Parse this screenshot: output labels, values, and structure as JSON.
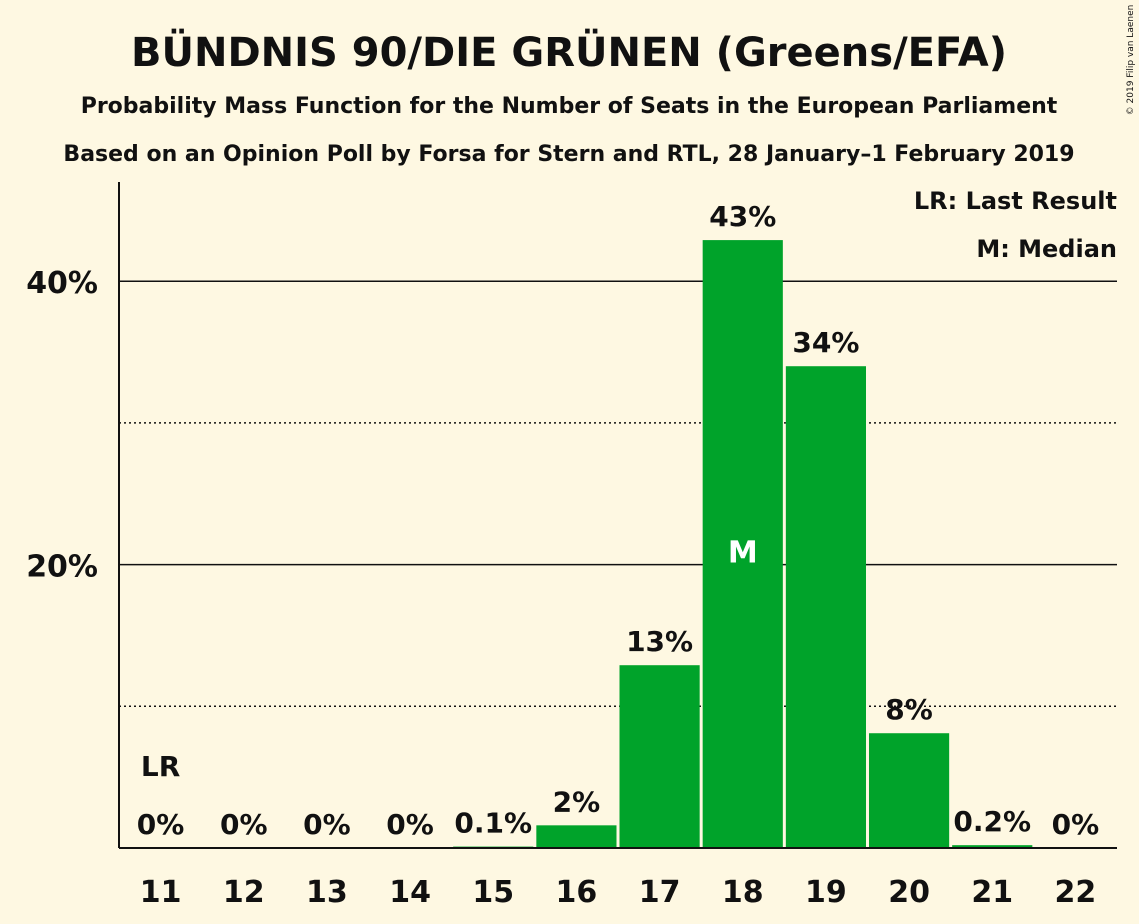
{
  "title": "BÜNDNIS 90/DIE GRÜNEN (Greens/EFA)",
  "subtitle1": "Probability Mass Function for the Number of Seats in the European Parliament",
  "subtitle2": "Based on an Opinion Poll by Forsa for Stern and RTL, 28 January–1 February 2019",
  "copyright": "© 2019 Filip van Laenen",
  "legend": {
    "lr": "LR: Last Result",
    "median": "M: Median"
  },
  "colors": {
    "bar": "#00a32a",
    "background": "#fef8e2",
    "text": "#111111"
  },
  "chart_data": {
    "type": "bar",
    "categories": [
      "11",
      "12",
      "13",
      "14",
      "15",
      "16",
      "17",
      "18",
      "19",
      "20",
      "21",
      "22"
    ],
    "values": [
      0,
      0,
      0,
      0,
      0.1,
      1.6,
      12.9,
      42.9,
      34.0,
      8.1,
      0.2,
      0
    ],
    "labels": [
      "0%",
      "0%",
      "0%",
      "0%",
      "0.1%",
      "2%",
      "13%",
      "43%",
      "34%",
      "8%",
      "0.2%",
      "0%"
    ],
    "ylim": [
      0,
      47
    ],
    "yticks": [
      {
        "value": 20,
        "label": "20%"
      },
      {
        "value": 40,
        "label": "40%"
      }
    ],
    "dotted_gridlines": [
      10,
      30
    ],
    "last_result": {
      "category": "11",
      "label": "LR"
    },
    "median": {
      "category": "18",
      "label": "M"
    }
  }
}
